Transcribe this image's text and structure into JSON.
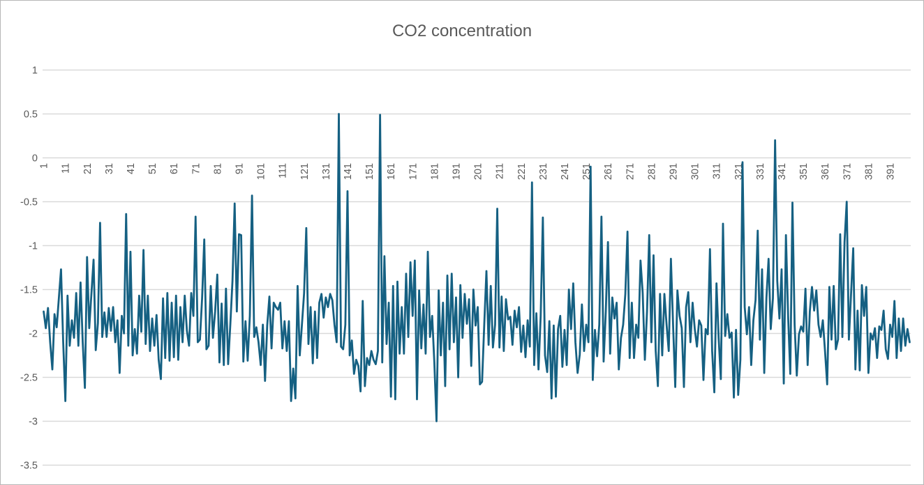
{
  "chart": {
    "title": "CO2 concentration"
  },
  "chart_data": {
    "type": "line",
    "title": "CO2 concentration",
    "xlabel": "",
    "ylabel": "",
    "legend": "none",
    "grid": "horizontal",
    "ylim": [
      -3.5,
      1
    ],
    "y_tick_step": 0.5,
    "y_tick_labels": [
      "1",
      "0.5",
      "0",
      "-0.5",
      "-1",
      "-1.5",
      "-2",
      "-2.5",
      "-3",
      "-3.5"
    ],
    "x_label_step": 10,
    "x_labels": [
      "1",
      "11",
      "21",
      "31",
      "41",
      "51",
      "61",
      "71",
      "81",
      "91",
      "101",
      "111",
      "121",
      "131",
      "141",
      "151",
      "161",
      "171",
      "181",
      "191",
      "201",
      "211",
      "221",
      "231",
      "241",
      "251",
      "261",
      "271",
      "281",
      "291",
      "301",
      "311",
      "321",
      "331",
      "341",
      "351",
      "361",
      "371",
      "381",
      "391"
    ],
    "series_name": "CO2 concentration",
    "series_color": "#156082",
    "grid_color": "#D9D9D9",
    "label_color": "#595959",
    "title_color": "#595959",
    "frame_color": "#b7b7b7",
    "x_start": 1,
    "values": [
      -1.75,
      -1.94,
      -1.71,
      -2.1,
      -2.41,
      -1.78,
      -1.93,
      -1.6,
      -1.27,
      -2.1,
      -2.77,
      -1.57,
      -2.14,
      -1.85,
      -2.05,
      -1.54,
      -2.14,
      -1.42,
      -2.1,
      -2.62,
      -1.13,
      -1.94,
      -1.55,
      -1.16,
      -2.19,
      -1.88,
      -0.74,
      -2.04,
      -1.76,
      -2.04,
      -1.71,
      -1.97,
      -1.7,
      -2.1,
      -1.85,
      -2.45,
      -1.8,
      -2.0,
      -0.64,
      -2.14,
      -1.07,
      -2.25,
      -1.95,
      -2.23,
      -1.57,
      -1.98,
      -1.05,
      -2.12,
      -1.57,
      -2.2,
      -1.83,
      -2.14,
      -1.79,
      -2.3,
      -2.52,
      -1.6,
      -2.28,
      -1.54,
      -2.31,
      -1.65,
      -2.27,
      -1.57,
      -2.3,
      -1.7,
      -2.1,
      -1.57,
      -1.97,
      -2.14,
      -1.54,
      -1.8,
      -0.67,
      -2.1,
      -2.07,
      -1.6,
      -0.93,
      -2.18,
      -2.14,
      -1.46,
      -2.05,
      -1.75,
      -1.33,
      -2.33,
      -1.66,
      -2.36,
      -1.49,
      -2.35,
      -1.9,
      -1.4,
      -0.52,
      -1.75,
      -0.87,
      -0.88,
      -2.32,
      -1.86,
      -2.31,
      -1.8,
      -0.43,
      -2.04,
      -1.93,
      -2.1,
      -2.36,
      -1.9,
      -2.54,
      -1.91,
      -1.58,
      -2.17,
      -1.65,
      -1.7,
      -1.73,
      -1.65,
      -2.17,
      -1.86,
      -2.2,
      -1.86,
      -2.77,
      -2.4,
      -2.74,
      -1.46,
      -2.25,
      -1.9,
      -1.54,
      -0.8,
      -2.12,
      -1.7,
      -2.34,
      -1.75,
      -2.28,
      -1.65,
      -1.55,
      -1.82,
      -1.59,
      -1.7,
      -1.55,
      -1.62,
      -1.9,
      -2.1,
      0.5,
      -2.15,
      -2.18,
      -1.9,
      -0.38,
      -2.25,
      -2.08,
      -2.46,
      -2.3,
      -2.37,
      -2.66,
      -1.63,
      -2.6,
      -2.28,
      -2.36,
      -2.2,
      -2.3,
      -2.35,
      -2.2,
      0.49,
      -2.33,
      -1.12,
      -2.12,
      -1.65,
      -2.72,
      -1.46,
      -2.75,
      -1.41,
      -2.23,
      -1.7,
      -2.23,
      -1.32,
      -2.04,
      -1.19,
      -1.8,
      -1.17,
      -2.75,
      -1.51,
      -2.17,
      -1.67,
      -2.23,
      -1.07,
      -2.04,
      -1.8,
      -2.33,
      -3.0,
      -1.51,
      -2.25,
      -1.65,
      -2.6,
      -1.34,
      -2.18,
      -1.32,
      -2.1,
      -1.59,
      -2.5,
      -1.45,
      -2.05,
      -1.55,
      -1.89,
      -1.61,
      -2.37,
      -1.5,
      -1.91,
      -1.7,
      -2.58,
      -2.55,
      -1.9,
      -1.29,
      -2.13,
      -1.46,
      -2.16,
      -1.9,
      -0.58,
      -2.16,
      -1.58,
      -2.2,
      -1.61,
      -1.84,
      -1.81,
      -2.13,
      -1.74,
      -1.93,
      -1.7,
      -2.21,
      -1.91,
      -2.27,
      -1.85,
      -2.15,
      -0.28,
      -2.36,
      -1.77,
      -2.41,
      -1.8,
      -0.68,
      -2.25,
      -2.44,
      -1.86,
      -2.74,
      -1.91,
      -2.72,
      -1.95,
      -1.8,
      -2.38,
      -1.96,
      -2.36,
      -1.5,
      -1.95,
      -1.43,
      -2.1,
      -2.45,
      -2.24,
      -1.67,
      -2.2,
      -1.9,
      -2.1,
      -0.1,
      -2.53,
      -1.96,
      -2.26,
      -1.9,
      -0.67,
      -2.32,
      -1.75,
      -0.96,
      -2.23,
      -1.59,
      -1.83,
      -1.65,
      -2.41,
      -2.05,
      -1.9,
      -1.55,
      -0.84,
      -2.28,
      -1.65,
      -2.28,
      -1.9,
      -2.05,
      -1.17,
      -1.54,
      -2.3,
      -1.75,
      -0.88,
      -2.1,
      -1.11,
      -2.2,
      -2.6,
      -1.55,
      -2.25,
      -1.55,
      -1.9,
      -2.2,
      -1.15,
      -1.9,
      -2.61,
      -1.51,
      -1.8,
      -1.94,
      -2.61,
      -1.7,
      -1.53,
      -2.1,
      -1.65,
      -1.95,
      -2.15,
      -1.85,
      -1.91,
      -2.53,
      -1.95,
      -2.01,
      -1.04,
      -2.2,
      -2.67,
      -1.43,
      -2.05,
      -2.52,
      -0.75,
      -2.03,
      -1.78,
      -2.05,
      -1.99,
      -2.73,
      -1.96,
      -2.7,
      -2.3,
      -0.05,
      -1.7,
      -2.01,
      -1.7,
      -2.36,
      -1.85,
      -1.62,
      -0.83,
      -2.07,
      -1.27,
      -2.45,
      -1.6,
      -1.15,
      -1.95,
      -1.6,
      0.2,
      -1.4,
      -1.83,
      -1.27,
      -2.57,
      -0.88,
      -1.8,
      -2.46,
      -0.51,
      -1.9,
      -2.48,
      -2.01,
      -1.92,
      -1.98,
      -1.49,
      -2.36,
      -1.75,
      -1.47,
      -1.74,
      -1.51,
      -1.9,
      -2.04,
      -1.85,
      -2.2,
      -2.58,
      -1.47,
      -2.07,
      -1.46,
      -2.18,
      -2.07,
      -0.87,
      -2.04,
      -0.96,
      -0.5,
      -2.07,
      -1.55,
      -1.03,
      -2.41,
      -1.74,
      -2.42,
      -1.45,
      -1.8,
      -1.47,
      -2.45,
      -2.0,
      -2.07,
      -1.94,
      -2.28,
      -1.92,
      -1.96,
      -1.74,
      -2.18,
      -2.29,
      -1.9,
      -2.04,
      -1.63,
      -2.28,
      -1.83,
      -2.2,
      -1.83,
      -2.14,
      -1.95,
      -2.1
    ]
  }
}
